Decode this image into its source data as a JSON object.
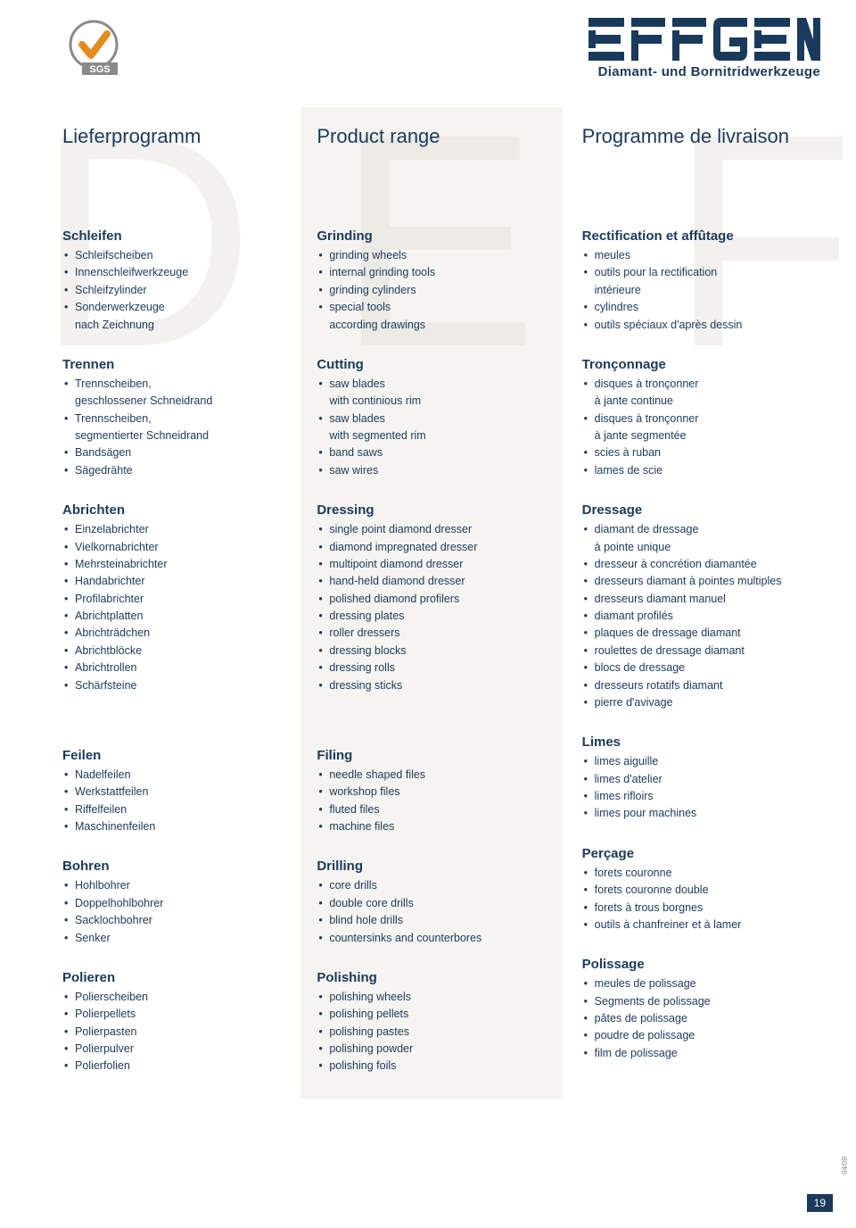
{
  "brand": {
    "name": "EFFGEN",
    "subtitle": "Diamant- und Bornitridwerkzeuge"
  },
  "columns": {
    "de": {
      "title": "Lieferprogramm",
      "bg": "D",
      "sections": [
        {
          "title": "Schleifen",
          "items": [
            "Schleifscheiben",
            "Innenschleifwerkzeuge",
            "Schleifzylinder",
            "Sonderwerkzeuge\nnach Zeichnung"
          ]
        },
        {
          "title": "Trennen",
          "items": [
            "Trennscheiben,\ngeschlossener Schneidrand",
            "Trennscheiben,\nsegmentierter Schneidrand",
            "Bandsägen",
            "Sägedrähte"
          ]
        },
        {
          "title": "Abrichten",
          "items": [
            "Einzelabrichter",
            "Vielkornabrichter",
            "Mehrsteinabrichter",
            "Handabrichter",
            "Profilabrichter",
            "Abrichtplatten",
            "Abrichträdchen",
            "Abrichtblöcke",
            "Abrichtrollen",
            "Schärfsteine"
          ]
        },
        {
          "title": "Feilen",
          "items": [
            "Nadelfeilen",
            "Werkstattfeilen",
            "Riffelfeilen",
            "Maschinenfeilen"
          ],
          "gap": 60
        },
        {
          "title": "Bohren",
          "items": [
            "Hohlbohrer",
            "Doppelhohlbohrer",
            "Sacklochbohrer",
            "Senker"
          ]
        },
        {
          "title": "Polieren",
          "items": [
            "Polierscheiben",
            "Polierpellets",
            "Polierpasten",
            "Polierpulver",
            "Polierfolien"
          ]
        }
      ]
    },
    "en": {
      "title": "Product range",
      "bg": "E",
      "sections": [
        {
          "title": "Grinding",
          "items": [
            "grinding wheels",
            "internal grinding tools",
            "grinding cylinders",
            "special tools\naccording drawings"
          ]
        },
        {
          "title": "Cutting",
          "items": [
            "saw blades\nwith continious rim",
            "saw blades\nwith segmented rim",
            "band saws",
            "saw wires"
          ]
        },
        {
          "title": "Dressing",
          "items": [
            "single point diamond dresser",
            "diamond impregnated dresser",
            "multipoint diamond dresser",
            "hand-held diamond dresser",
            "polished diamond profilers",
            "dressing plates",
            "roller dressers",
            "dressing blocks",
            "dressing rolls",
            "dressing sticks"
          ]
        },
        {
          "title": "Filing",
          "items": [
            "needle shaped files",
            "workshop files",
            "fluted files",
            "machine files"
          ],
          "gap": 60
        },
        {
          "title": "Drilling",
          "items": [
            "core drills",
            "double core drills",
            "blind hole drills",
            "countersinks and counterbores"
          ]
        },
        {
          "title": "Polishing",
          "items": [
            "polishing wheels",
            "polishing pellets",
            "polishing pastes",
            "polishing powder",
            "polishing foils"
          ]
        }
      ]
    },
    "fr": {
      "title": "Programme de livraison",
      "bg": "F",
      "sections": [
        {
          "title": "Rectification et affûtage",
          "items": [
            "meules",
            "outils pour la rectification\nintérieure",
            "cylindres",
            "outils spéciaux d'après dessin"
          ]
        },
        {
          "title": "Tronçonnage",
          "items": [
            "disques à tronçonner\nà jante continue",
            "disques à tronçonner\nà jante segmentée",
            "scies à ruban",
            "lames de scie"
          ]
        },
        {
          "title": "Dressage",
          "items": [
            "diamant de dressage\nà pointe unique",
            "dresseur à concrétion diamantée",
            "dresseurs diamant à pointes multiples",
            "dresseurs diamant manuel",
            "diamant profilés",
            "plaques de dressage diamant",
            "roulettes de dressage diamant",
            "blocs de dressage",
            "dresseurs rotatifs diamant",
            "pierre d'avivage"
          ]
        },
        {
          "title": "Limes",
          "items": [
            "limes aiguille",
            "limes d'atelier",
            "limes rifloirs",
            "limes pour machines"
          ],
          "gap": 20
        },
        {
          "title": "Perçage",
          "items": [
            "forets couronne",
            "forets couronne double",
            "forets à trous borgnes",
            "outils à chanfreiner et à lamer"
          ]
        },
        {
          "title": "Polissage",
          "items": [
            "meules de polissage",
            "Segments de polissage",
            "pâtes de polissage",
            "poudre de polissage",
            "film de polissage"
          ]
        }
      ]
    }
  },
  "page_number": "19",
  "side_label": "04/09"
}
